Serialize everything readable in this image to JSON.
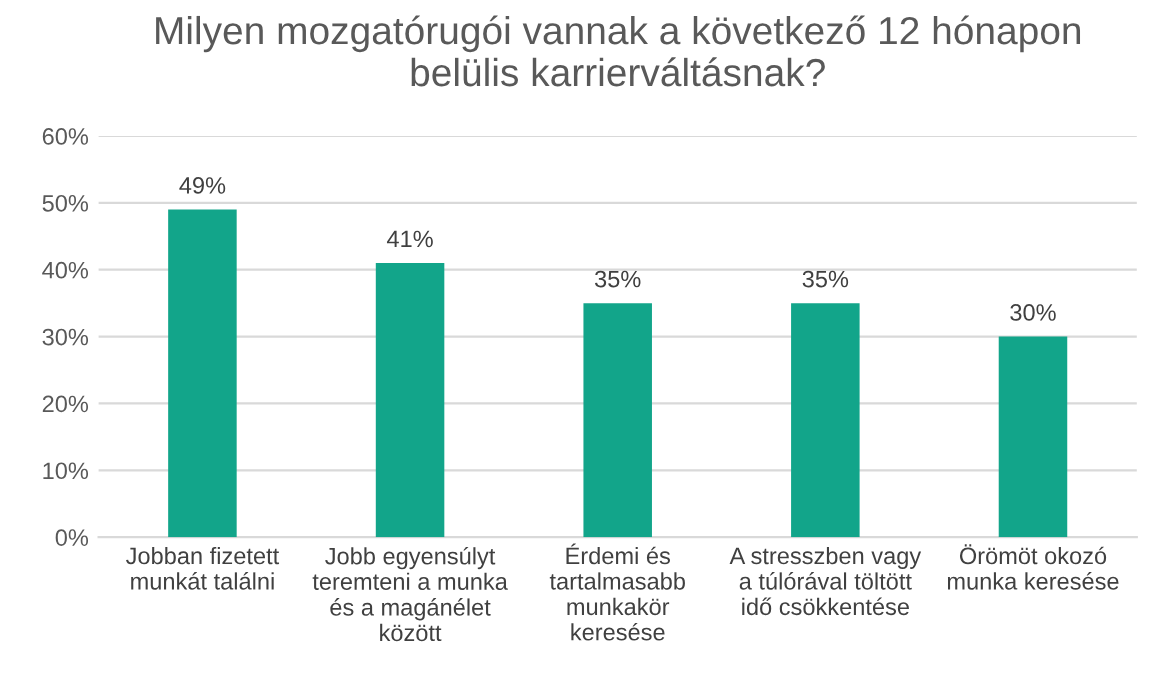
{
  "chart_data": {
    "type": "bar",
    "title": "Milyen mozgatórugói vannak a következő 12 hónapon\nbelülis karrierváltásnak?",
    "categories": [
      "Jobban fizetett\nmunkát találni",
      "Jobb egyensúlyt\nteremteni a munka\nés a magánélet\nközött",
      "Érdemi és\ntartalmasabb\nmunkakör\nkeresése",
      "A stresszben vagy\na túlórával töltött\nidő csökkentése",
      "Örömöt okozó\nmunka keresése"
    ],
    "values": [
      49,
      41,
      35,
      35,
      30
    ],
    "value_labels": [
      "49%",
      "41%",
      "35%",
      "35%",
      "30%"
    ],
    "color": "#12a58a",
    "ylim": [
      0,
      60
    ],
    "yticks": [
      {
        "value": 0,
        "label": "0%"
      },
      {
        "value": 10,
        "label": "10%"
      },
      {
        "value": 20,
        "label": "20%"
      },
      {
        "value": 30,
        "label": "30%"
      },
      {
        "value": 40,
        "label": "40%"
      },
      {
        "value": 50,
        "label": "50%"
      },
      {
        "value": 60,
        "label": "60%"
      }
    ],
    "grid": "y"
  }
}
